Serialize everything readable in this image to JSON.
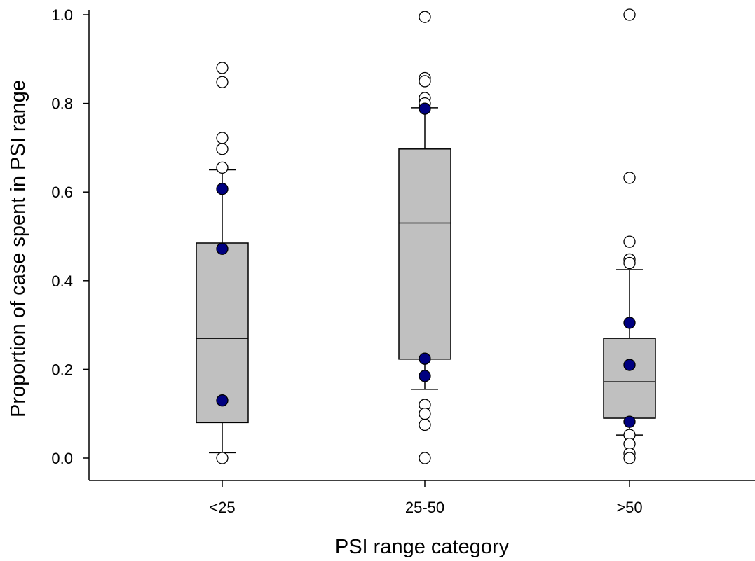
{
  "chart_data": {
    "type": "box",
    "xlabel": "PSI range category",
    "ylabel": "Proportion of case spent in PSI range",
    "ylim": [
      0,
      1.0
    ],
    "yticks": [
      "0.0",
      "0.2",
      "0.4",
      "0.6",
      "0.8",
      "1.0"
    ],
    "categories": [
      "<25",
      "25-50",
      ">50"
    ],
    "grid": false,
    "colors": {
      "box_fill": "#c0c0c0",
      "highlight_point": "#000080",
      "outlier_fill": "#ffffff"
    },
    "boxes": [
      {
        "category": "<25",
        "q1": 0.08,
        "median": 0.27,
        "q3": 0.485,
        "whisker_low": 0.012,
        "whisker_high": 0.65
      },
      {
        "category": "25-50",
        "q1": 0.223,
        "median": 0.53,
        "q3": 0.697,
        "whisker_low": 0.155,
        "whisker_high": 0.79
      },
      {
        "category": ">50",
        "q1": 0.09,
        "median": 0.172,
        "q3": 0.27,
        "whisker_low": 0.052,
        "whisker_high": 0.425
      }
    ],
    "outliers": [
      {
        "category": "<25",
        "values": [
          0.88,
          0.848,
          0.722,
          0.697,
          0.655,
          0.0
        ]
      },
      {
        "category": "25-50",
        "values": [
          0.995,
          0.857,
          0.85,
          0.812,
          0.8,
          0.12,
          0.1,
          0.075,
          0.0
        ]
      },
      {
        "category": ">50",
        "values": [
          1.0,
          0.632,
          0.488,
          0.448,
          0.44,
          0.052,
          0.032,
          0.01,
          0.0
        ]
      }
    ],
    "highlighted": [
      {
        "category": "<25",
        "values": [
          0.607,
          0.472,
          0.13
        ]
      },
      {
        "category": "25-50",
        "values": [
          0.788,
          0.224,
          0.185
        ]
      },
      {
        "category": ">50",
        "values": [
          0.305,
          0.21,
          0.082
        ]
      }
    ]
  }
}
